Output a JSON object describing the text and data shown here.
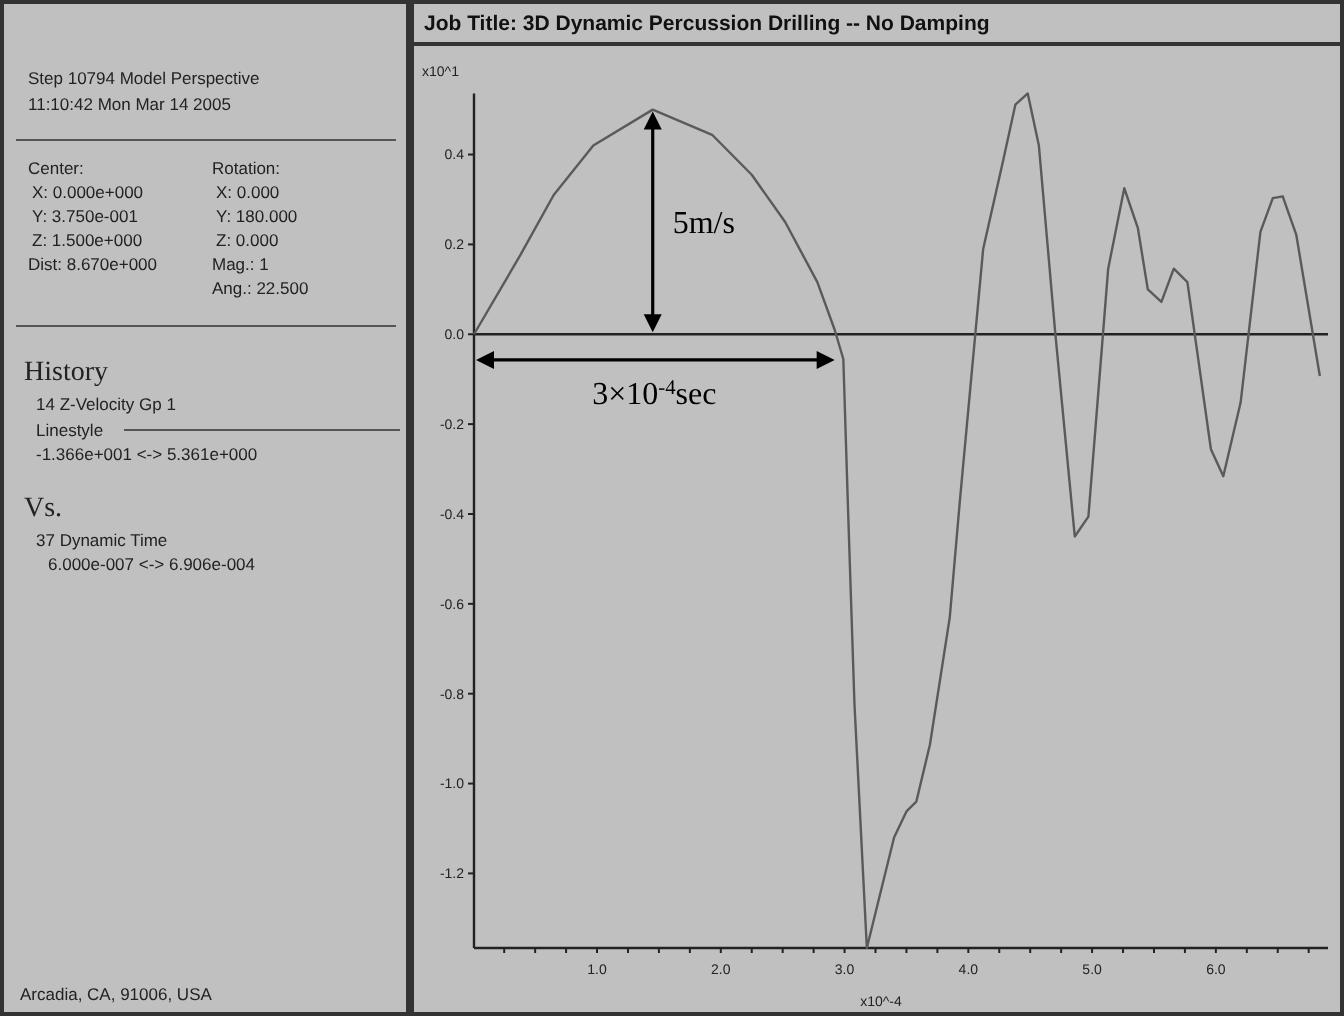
{
  "chart_data": [
    {
      "type": "other",
      "annotations": [
        "Step 10794 Model Perspective",
        "11:10:42 Mon Mar 14 2005",
        "Center:",
        "Rotation:",
        "X: 0.000e+000",
        "X: 0.000",
        "Y: 3.750e-001",
        "Y: 180.000",
        "Z: 1.500e+000",
        "Z: 0.000",
        "Dist: 8.670e+000",
        "Mag.: 1",
        "Ang.: 22.500",
        "History",
        "14 Z-Velocity Gp 1",
        "Linestyle",
        "-1.366e+001 <-> 5.361e+000",
        "Vs.",
        "37 Dynamic Time",
        "6.000e-007 <-> 6.906e-004",
        "Arcadia, CA, 91006, USA"
      ]
    },
    {
      "type": "line",
      "title": "Job Title: 3D Dynamic Percussion Drilling -- No Damping",
      "xlabel": "x10^-4",
      "ylabel": "x10^1",
      "x": [
        0.006,
        0.38,
        0.65,
        0.97,
        1.45,
        1.93,
        2.25,
        2.52,
        2.78,
        2.92,
        2.99,
        3.03,
        3.08,
        3.18,
        3.4,
        3.5,
        3.58,
        3.69,
        3.85,
        3.93,
        4.12,
        4.28,
        4.38,
        4.48,
        4.57,
        4.7,
        4.86,
        4.97,
        5.13,
        5.26,
        5.37,
        5.45,
        5.56,
        5.66,
        5.77,
        5.96,
        6.06,
        6.2,
        6.36,
        6.46,
        6.54,
        6.65,
        6.84
      ],
      "series": [
        {
          "color": "#5a5a5a",
          "values": [
            0.0,
            0.176,
            0.31,
            0.42,
            0.5,
            0.444,
            0.355,
            0.25,
            0.116,
            0.01,
            -0.055,
            -0.406,
            -0.823,
            -1.366,
            -1.12,
            -1.062,
            -1.04,
            -0.913,
            -0.63,
            -0.376,
            0.19,
            0.385,
            0.511,
            0.536,
            0.42,
            0.01,
            -0.45,
            -0.406,
            0.146,
            0.325,
            0.236,
            0.1,
            0.072,
            0.146,
            0.116,
            -0.256,
            -0.316,
            -0.152,
            0.228,
            0.303,
            0.307,
            0.221,
            -0.093
          ]
        }
      ],
      "xlim": [
        0.006,
        6.906
      ],
      "ylim": [
        -1.366,
        0.5361
      ],
      "xticks": [
        {
          "value": 0.25,
          "label": null
        },
        {
          "value": 0.5,
          "label": null
        },
        {
          "value": 0.75,
          "label": null
        },
        {
          "value": 1,
          "label": "1.0"
        },
        {
          "value": 1.25,
          "label": null
        },
        {
          "value": 1.5,
          "label": null
        },
        {
          "value": 1.75,
          "label": null
        },
        {
          "value": 2,
          "label": "2.0"
        },
        {
          "value": 2.25,
          "label": null
        },
        {
          "value": 2.5,
          "label": null
        },
        {
          "value": 2.75,
          "label": null
        },
        {
          "value": 3,
          "label": "3.0"
        },
        {
          "value": 3.25,
          "label": null
        },
        {
          "value": 3.5,
          "label": null
        },
        {
          "value": 3.75,
          "label": null
        },
        {
          "value": 4,
          "label": "4.0"
        },
        {
          "value": 4.25,
          "label": null
        },
        {
          "value": 4.5,
          "label": null
        },
        {
          "value": 4.75,
          "label": null
        },
        {
          "value": 5,
          "label": "5.0"
        },
        {
          "value": 5.25,
          "label": null
        },
        {
          "value": 5.5,
          "label": null
        },
        {
          "value": 5.75,
          "label": null
        },
        {
          "value": 6,
          "label": "6.0"
        },
        {
          "value": 6.25,
          "label": null
        },
        {
          "value": 6.5,
          "label": null
        },
        {
          "value": 6.75,
          "label": null
        }
      ],
      "yticks": [
        -1.2,
        {
          "value": -1,
          "label": "-1.0"
        },
        -0.8,
        -0.6,
        -0.4,
        -0.2,
        {
          "value": 0,
          "label": "0.0"
        },
        0.2,
        0.4
      ],
      "ref_lines": [
        {
          "axis": "y",
          "value": 0
        }
      ],
      "annotations": [
        "5m/s",
        "3×10$^{-4}$sec"
      ]
    }
  ]
}
